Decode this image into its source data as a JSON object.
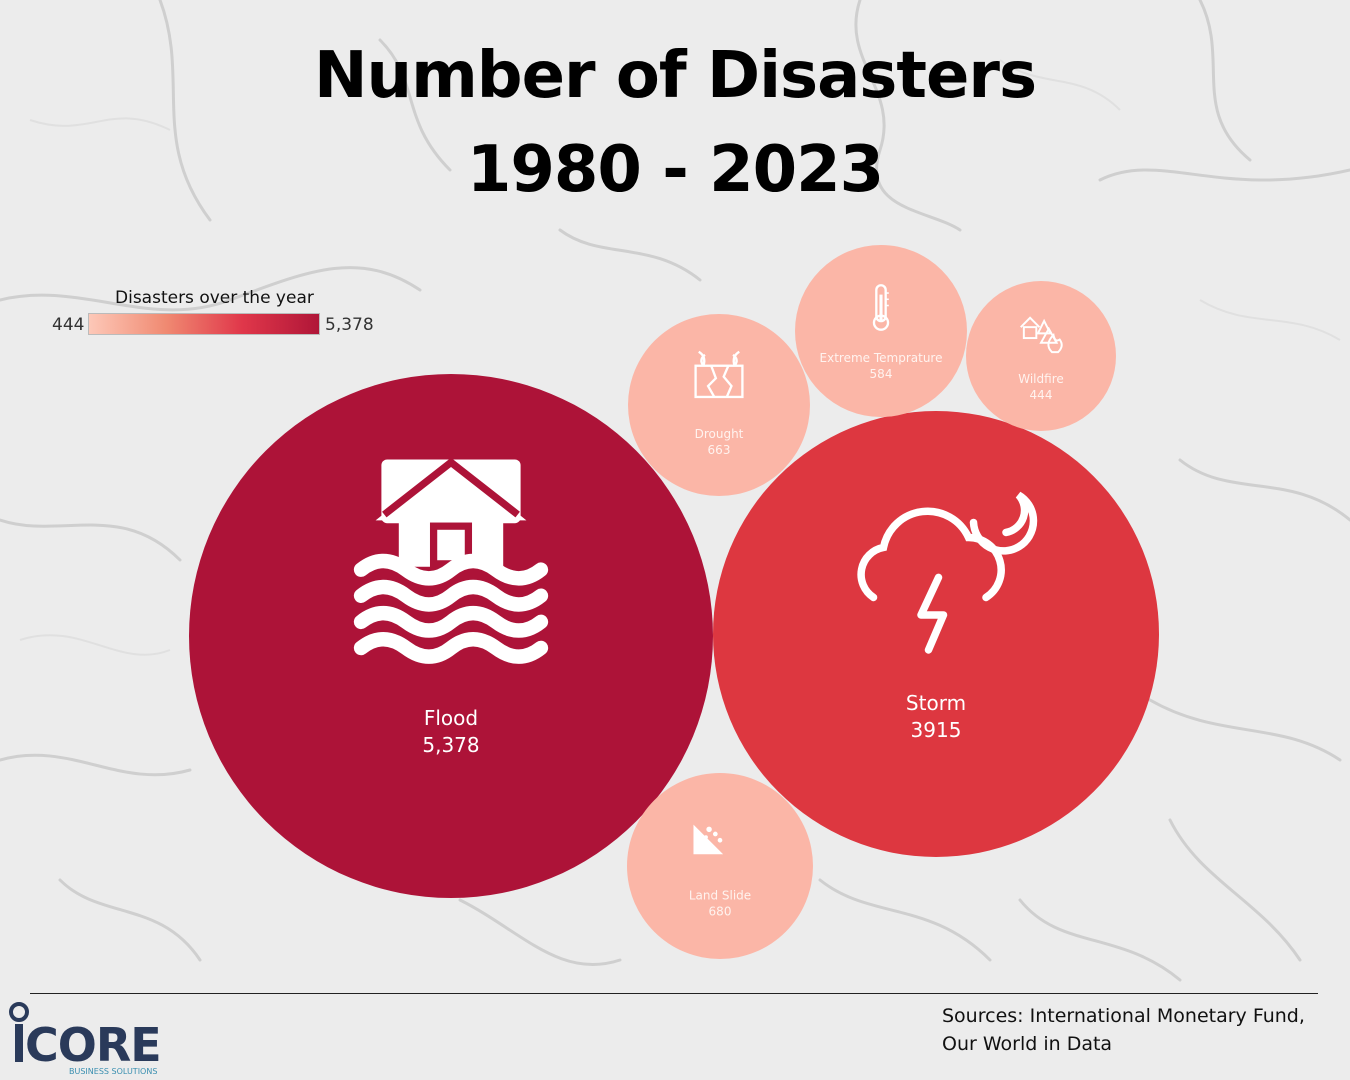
{
  "title": {
    "line1": "Number of Disasters",
    "line2": "1980 - 2023"
  },
  "legend": {
    "title": "Disasters over the year",
    "min_label": "444",
    "max_label": "5,378",
    "gradient": [
      "#fdc8b8",
      "#f08a72",
      "#e0374a",
      "#b01638"
    ]
  },
  "chart_data": {
    "type": "bubble",
    "series": [
      {
        "name": "Flood",
        "value_label": "5,378",
        "value": 5378,
        "color": "#ad1338",
        "icon": "flooded-house-icon"
      },
      {
        "name": "Storm",
        "value_label": "3915",
        "value": 3915,
        "color": "#dd3740",
        "icon": "storm-cloud-lightning-icon"
      },
      {
        "name": "Land Slide",
        "value_label": "680",
        "value": 680,
        "color": "#fbb6a7",
        "icon": "landslide-icon"
      },
      {
        "name": "Drought",
        "value_label": "663",
        "value": 663,
        "color": "#fbb6a7",
        "icon": "cracked-ground-icon"
      },
      {
        "name": "Extreme Temprature",
        "value_label": "584",
        "value": 584,
        "color": "#fbb6a7",
        "icon": "thermometer-icon"
      },
      {
        "name": "Wildfire",
        "value_label": "444",
        "value": 444,
        "color": "#fbb6a7",
        "icon": "house-fire-icon"
      }
    ]
  },
  "footer": {
    "sources_line1": "Sources: International Monetary Fund,",
    "sources_line2": "Our World in Data",
    "logo_text": "CORE",
    "logo_subtext": "BUSINESS SOLUTIONS"
  }
}
